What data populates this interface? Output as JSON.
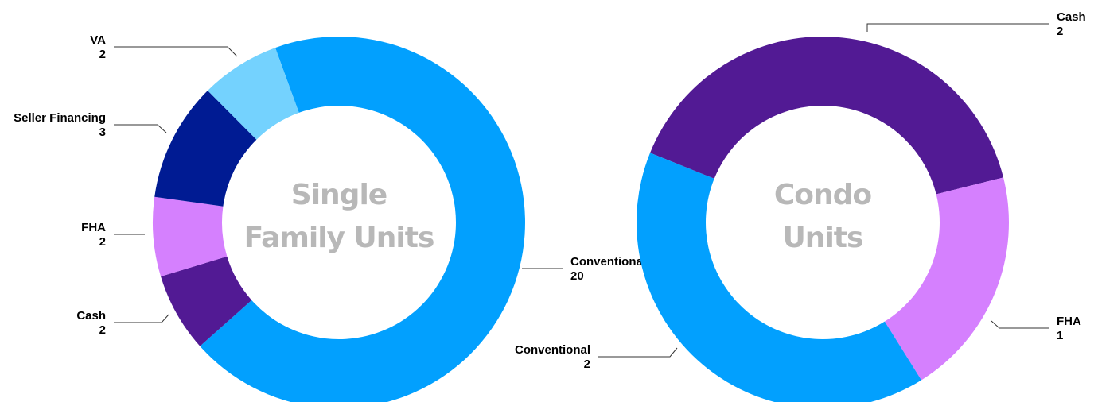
{
  "chart_data": [
    {
      "type": "pie",
      "title": "Single Family Units",
      "title_lines": [
        "Single",
        "Family Units"
      ],
      "slices": [
        {
          "label": "Conventional",
          "value": 20,
          "color": "#02a0fe"
        },
        {
          "label": "Cash",
          "value": 2,
          "color": "#521a94"
        },
        {
          "label": "FHA",
          "value": 2,
          "color": "#d580fe"
        },
        {
          "label": "Seller Financing",
          "value": 3,
          "color": "#001b93"
        },
        {
          "label": "VA",
          "value": 2,
          "color": "#74d2fe"
        }
      ]
    },
    {
      "type": "pie",
      "title": "Condo Units",
      "title_lines": [
        "Condo",
        "Units"
      ],
      "slices": [
        {
          "label": "Cash",
          "value": 2,
          "color": "#521a94"
        },
        {
          "label": "FHA",
          "value": 1,
          "color": "#d580fe"
        },
        {
          "label": "Conventional",
          "value": 2,
          "color": "#02a0fe"
        }
      ]
    }
  ]
}
